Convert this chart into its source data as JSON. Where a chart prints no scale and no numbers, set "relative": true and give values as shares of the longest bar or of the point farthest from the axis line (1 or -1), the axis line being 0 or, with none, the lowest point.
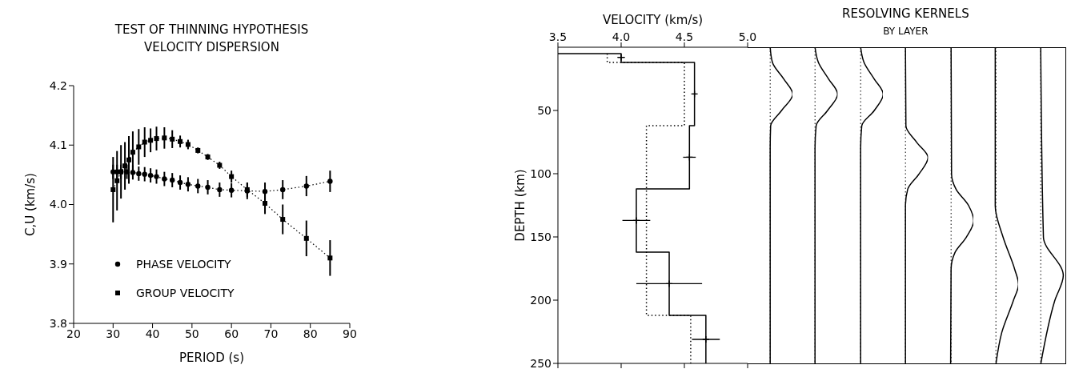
{
  "chart_data": [
    {
      "type": "line",
      "title": "TEST OF THINNING HYPOTHESIS",
      "subtitle": "VELOCITY DISPERSION",
      "xlabel": "PERIOD (s)",
      "ylabel": "C,U (km/s)",
      "xlim": [
        20,
        90
      ],
      "xticks": [
        20,
        30,
        40,
        50,
        60,
        70,
        80,
        90
      ],
      "ylim": [
        3.8,
        4.2
      ],
      "yticks": [
        3.8,
        3.9,
        {
          "value": 4,
          "label": "4.0"
        },
        4.1,
        4.2
      ],
      "legend": "bottom left",
      "series": [
        {
          "name": "PHASE VELOCITY",
          "color": "#000000",
          "marker": "circle",
          "line_style": "dotted",
          "x": [
            30,
            31,
            32,
            33.5,
            35,
            36.5,
            38,
            39.5,
            41,
            43,
            45,
            47,
            49,
            51.5,
            54,
            57,
            60,
            64,
            68.5,
            73,
            79,
            85
          ],
          "values": [
            4.055,
            4.055,
            4.055,
            4.055,
            4.054,
            4.052,
            4.051,
            4.049,
            4.047,
            4.043,
            4.041,
            4.037,
            4.034,
            4.031,
            4.029,
            4.025,
            4.024,
            4.023,
            4.022,
            4.025,
            4.031,
            4.039
          ],
          "errors": [
            0.012,
            0.012,
            0.012,
            0.012,
            0.012,
            0.012,
            0.012,
            0.012,
            0.012,
            0.012,
            0.012,
            0.012,
            0.012,
            0.012,
            0.012,
            0.012,
            0.012,
            0.014,
            0.015,
            0.016,
            0.017,
            0.018
          ]
        },
        {
          "name": "GROUP VELOCITY",
          "color": "#000000",
          "marker": "square",
          "line_style": "dotted",
          "x": [
            30,
            31,
            32,
            33,
            34,
            35,
            36.5,
            38,
            39.5,
            41,
            43,
            45,
            47,
            49,
            51.5,
            54,
            57,
            60,
            64,
            68.5,
            73,
            79,
            85
          ],
          "values": [
            4.025,
            4.04,
            4.055,
            4.065,
            4.075,
            4.088,
            4.097,
            4.105,
            4.108,
            4.111,
            4.112,
            4.11,
            4.106,
            4.101,
            4.091,
            4.08,
            4.066,
            4.047,
            4.025,
            4.002,
            3.975,
            3.943,
            3.91
          ],
          "errors": [
            0.055,
            0.05,
            0.045,
            0.04,
            0.04,
            0.035,
            0.03,
            0.025,
            0.02,
            0.02,
            0.018,
            0.015,
            0.01,
            0.008,
            0.005,
            0.005,
            0.006,
            0.01,
            0.012,
            0.018,
            0.025,
            0.03,
            0.03
          ]
        }
      ]
    },
    {
      "type": "line",
      "xlabel": "VELOCITY (km/s)",
      "ylabel": "DEPTH (km)",
      "xlim": [
        3.5,
        5
      ],
      "xticks": [
        3.5,
        {
          "value": 4,
          "label": "4.0"
        },
        4.5,
        {
          "value": 5,
          "label": "5.0"
        }
      ],
      "ylim": [
        250,
        0
      ],
      "yticks": [
        50,
        100,
        150,
        200,
        250
      ],
      "series": [
        {
          "color": "#000000",
          "line_style": "solid",
          "x": [
            3.5,
            4.0,
            4.0,
            4.58,
            4.58,
            4.54,
            4.54,
            4.12,
            4.12,
            4.38,
            4.38,
            4.67,
            4.67
          ],
          "values": [
            5,
            5,
            12,
            12,
            62,
            62,
            112,
            112,
            162,
            162,
            212,
            212,
            250
          ]
        },
        {
          "color": "#000000",
          "line_style": "dotted",
          "x": [
            3.89,
            3.89,
            4.5,
            4.5,
            4.2,
            4.2,
            4.55,
            4.55
          ],
          "values": [
            5,
            12,
            12,
            62,
            62,
            212,
            212,
            250
          ]
        },
        {
          "type": "scatter",
          "color": "#000000",
          "marker": "cross",
          "x": [
            4.0,
            4.58,
            4.54,
            4.12,
            4.38,
            4.67
          ],
          "values": [
            8,
            37,
            87,
            137,
            187,
            231
          ],
          "xerrors": [
            0.03,
            0.015,
            0.05,
            0.11,
            0.26,
            0.11
          ]
        }
      ]
    },
    {
      "type": "line",
      "relative": true,
      "orientation": "horizontal",
      "ylim": [
        250,
        0
      ],
      "series": [
        {
          "color": "#000000",
          "x": [
            0,
            12,
            25,
            37,
            50,
            62,
            80,
            250
          ],
          "values": [
            0,
            0.1,
            0.6,
            1,
            0.5,
            0.02,
            0,
            0
          ]
        }
      ]
    },
    {
      "type": "line",
      "relative": true,
      "orientation": "horizontal",
      "ylim": [
        250,
        0
      ],
      "series": [
        {
          "color": "#000000",
          "x": [
            0,
            12,
            25,
            37,
            50,
            62,
            80,
            250
          ],
          "values": [
            0,
            0.15,
            0.6,
            1,
            0.55,
            0.05,
            0,
            0
          ]
        }
      ]
    },
    {
      "type": "line",
      "relative": true,
      "orientation": "horizontal",
      "ylim": [
        250,
        0
      ],
      "series": [
        {
          "color": "#000000",
          "x": [
            0,
            12,
            25,
            37,
            50,
            62,
            80,
            250
          ],
          "values": [
            0,
            0.15,
            0.6,
            1,
            0.6,
            0.05,
            0,
            0
          ]
        }
      ]
    },
    {
      "type": "line",
      "title": "RESOLVING KERNELS",
      "subtitle": "BY LAYER",
      "relative": true,
      "orientation": "horizontal",
      "ylim": [
        250,
        0
      ],
      "series": [
        {
          "color": "#000000",
          "x": [
            0,
            62,
            75,
            87,
            100,
            112,
            125,
            250
          ],
          "values": [
            0,
            0.02,
            0.5,
            1,
            0.6,
            0.1,
            0,
            0
          ]
        }
      ]
    },
    {
      "type": "line",
      "relative": true,
      "orientation": "horizontal",
      "ylim": [
        250,
        0
      ],
      "series": [
        {
          "color": "#000000",
          "x": [
            0,
            100,
            112,
            125,
            137,
            150,
            162,
            175,
            250
          ],
          "values": [
            0,
            0.02,
            0.22,
            0.78,
            1,
            0.67,
            0.17,
            0,
            -0.02
          ]
        }
      ]
    },
    {
      "type": "line",
      "relative": true,
      "orientation": "horizontal",
      "ylim": [
        250,
        0
      ],
      "series": [
        {
          "color": "#000000",
          "x": [
            0,
            125,
            150,
            175,
            187,
            200,
            225,
            250
          ],
          "values": [
            -0.03,
            -0.03,
            0.32,
            0.83,
            1,
            0.77,
            0.26,
            0
          ]
        }
      ]
    },
    {
      "type": "line",
      "relative": true,
      "orientation": "horizontal",
      "ylim": [
        250,
        0
      ],
      "series": [
        {
          "color": "#000000",
          "x": [
            0,
            150,
            180,
            200,
            250
          ],
          "values": [
            0,
            0.12,
            1,
            0.62,
            0
          ]
        }
      ]
    }
  ]
}
